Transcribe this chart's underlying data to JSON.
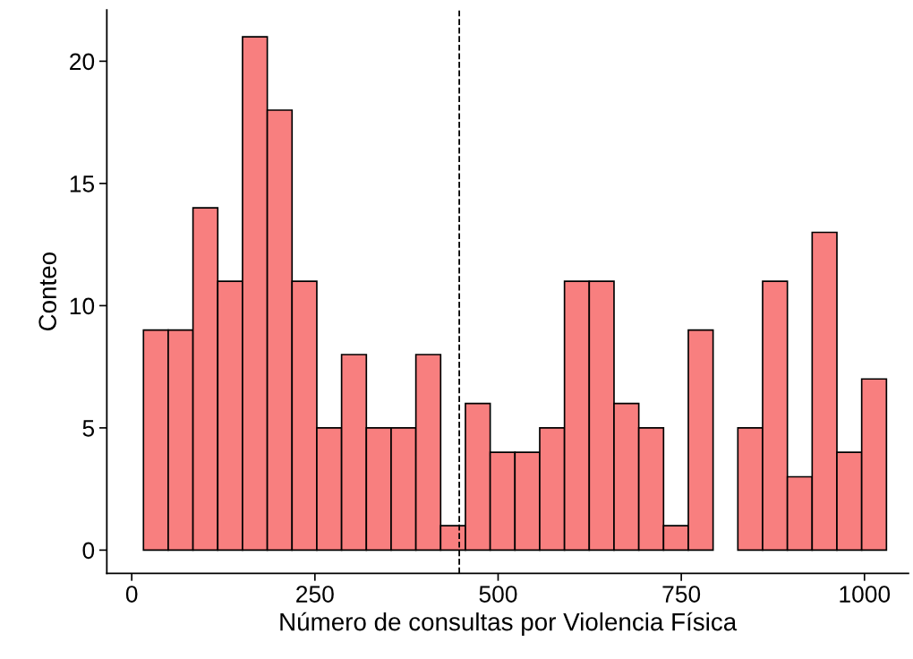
{
  "chart_data": {
    "type": "histogram",
    "xlabel": "Número de consultas por Violencia Física",
    "ylabel": "Conteo",
    "bins": [
      16,
      49.8,
      83.6,
      117.4,
      151.2,
      185,
      218.8,
      252.6,
      286.4,
      320.2,
      354,
      387.8,
      421.6,
      455.4,
      489.2,
      523,
      556.8,
      590.6,
      624.4,
      658.2,
      692,
      725.8,
      759.6,
      793.4,
      827.2,
      861,
      894.8,
      928.6,
      962.4,
      996.2,
      1030
    ],
    "values": [
      9,
      9,
      14,
      11,
      21,
      18,
      11,
      5,
      8,
      5,
      5,
      8,
      1,
      6,
      4,
      4,
      5,
      11,
      11,
      6,
      5,
      1,
      9,
      0,
      5,
      11,
      3,
      13,
      4,
      7
    ],
    "color": "#f87f7f",
    "xlim": [
      -34,
      1060
    ],
    "ylim": [
      -0.95,
      22.1
    ],
    "xticks": [
      0,
      250,
      500,
      750,
      1000
    ],
    "yticks": [
      0,
      5,
      10,
      15,
      20
    ],
    "ref_lines": [
      {
        "axis": "x",
        "value": 447,
        "line_style": "dashed",
        "color": "#000000"
      }
    ],
    "grid": false
  }
}
